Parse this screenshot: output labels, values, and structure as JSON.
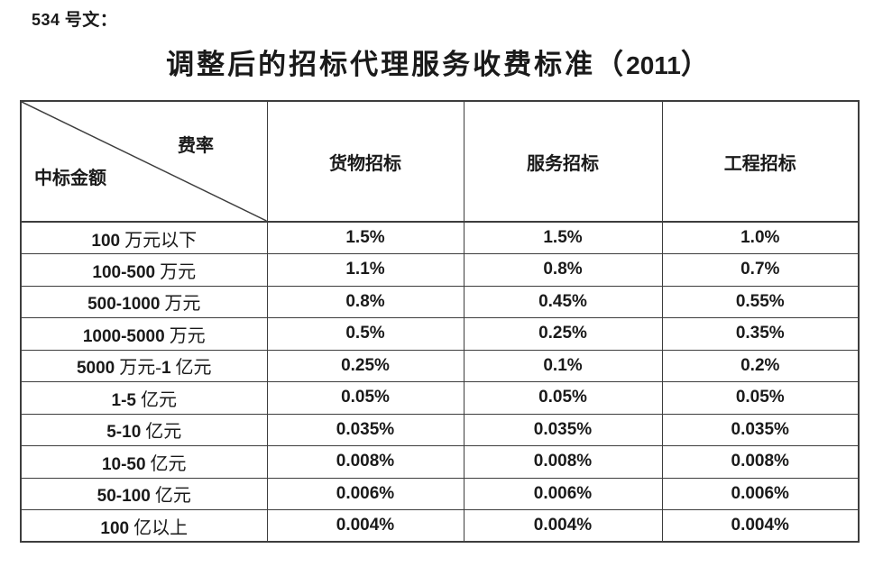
{
  "doc_label": "534 号文：",
  "title": "调整后的招标代理服务收费标准（2011）",
  "table": {
    "corner": {
      "top_right": "费率",
      "bottom_left": "中标金额"
    },
    "columns": [
      "货物招标",
      "服务招标",
      "工程招标"
    ],
    "rows": [
      {
        "label": "100 万元以下",
        "values": [
          "1.5%",
          "1.5%",
          "1.0%"
        ]
      },
      {
        "label": "100-500 万元",
        "values": [
          "1.1%",
          "0.8%",
          "0.7%"
        ]
      },
      {
        "label": "500-1000 万元",
        "values": [
          "0.8%",
          "0.45%",
          "0.55%"
        ]
      },
      {
        "label": "1000-5000 万元",
        "values": [
          "0.5%",
          "0.25%",
          "0.35%"
        ]
      },
      {
        "label": "5000 万元-1 亿元",
        "values": [
          "0.25%",
          "0.1%",
          "0.2%"
        ]
      },
      {
        "label": "1-5 亿元",
        "values": [
          "0.05%",
          "0.05%",
          "0.05%"
        ]
      },
      {
        "label": "5-10 亿元",
        "values": [
          "0.035%",
          "0.035%",
          "0.035%"
        ]
      },
      {
        "label": "10-50 亿元",
        "values": [
          "0.008%",
          "0.008%",
          "0.008%"
        ]
      },
      {
        "label": "50-100 亿元",
        "values": [
          "0.006%",
          "0.006%",
          "0.006%"
        ]
      },
      {
        "label": "100 亿以上",
        "values": [
          "0.004%",
          "0.004%",
          "0.004%"
        ]
      }
    ]
  },
  "colors": {
    "text": "#1a1a1a",
    "border": "#3d3d3d",
    "background": "#ffffff"
  }
}
